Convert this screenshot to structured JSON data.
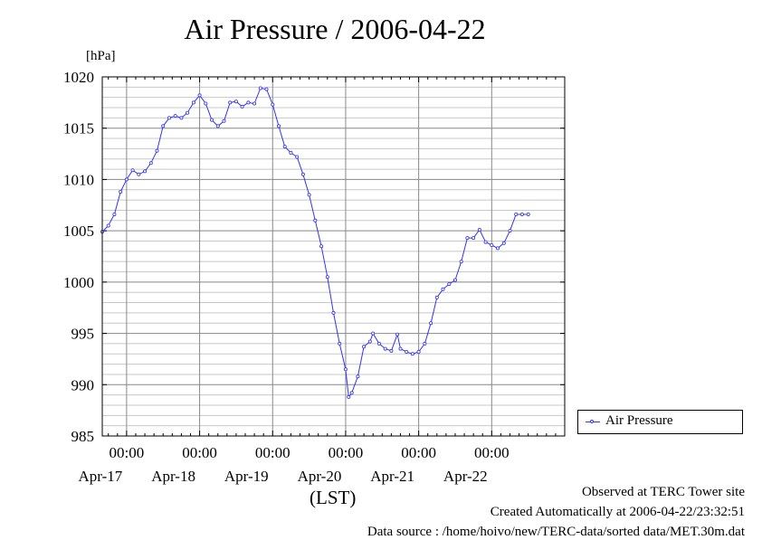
{
  "chart_data": {
    "type": "line",
    "title": "Air Pressure / 2006-04-22",
    "ylabel": "[hPa]",
    "xlabel": "(LST)",
    "ylim": [
      985,
      1020
    ],
    "yticks": [
      985,
      990,
      995,
      1000,
      1005,
      1010,
      1015,
      1020
    ],
    "xlim": [
      "2006-04-16 16:00",
      "2006-04-22 24:00"
    ],
    "xticks": [
      {
        "time": "2006-04-17 00:00",
        "clock": "00:00",
        "day": "Apr-17"
      },
      {
        "time": "2006-04-18 00:00",
        "clock": "00:00",
        "day": "Apr-18"
      },
      {
        "time": "2006-04-19 00:00",
        "clock": "00:00",
        "day": "Apr-19"
      },
      {
        "time": "2006-04-20 00:00",
        "clock": "00:00",
        "day": "Apr-20"
      },
      {
        "time": "2006-04-21 00:00",
        "clock": "00:00",
        "day": "Apr-21"
      },
      {
        "time": "2006-04-22 00:00",
        "clock": "00:00",
        "day": "Apr-22"
      }
    ],
    "grid": true,
    "legend_position": "right",
    "color": "#3333ee",
    "series": [
      {
        "name": "Air Pressure",
        "points": [
          [
            "2006-04-16 16:00",
            1004.9
          ],
          [
            "2006-04-16 18:00",
            1005.5
          ],
          [
            "2006-04-16 20:00",
            1006.6
          ],
          [
            "2006-04-16 22:00",
            1008.8
          ],
          [
            "2006-04-17 00:00",
            1010.0
          ],
          [
            "2006-04-17 02:00",
            1010.9
          ],
          [
            "2006-04-17 04:00",
            1010.5
          ],
          [
            "2006-04-17 06:00",
            1010.8
          ],
          [
            "2006-04-17 08:00",
            1011.6
          ],
          [
            "2006-04-17 10:00",
            1012.8
          ],
          [
            "2006-04-17 12:00",
            1015.2
          ],
          [
            "2006-04-17 14:00",
            1016.0
          ],
          [
            "2006-04-17 16:00",
            1016.2
          ],
          [
            "2006-04-17 18:00",
            1016.0
          ],
          [
            "2006-04-17 20:00",
            1016.5
          ],
          [
            "2006-04-17 22:00",
            1017.5
          ],
          [
            "2006-04-18 00:00",
            1018.2
          ],
          [
            "2006-04-18 02:00",
            1017.4
          ],
          [
            "2006-04-18 04:00",
            1015.8
          ],
          [
            "2006-04-18 06:00",
            1015.2
          ],
          [
            "2006-04-18 08:00",
            1015.7
          ],
          [
            "2006-04-18 10:00",
            1017.5
          ],
          [
            "2006-04-18 12:00",
            1017.6
          ],
          [
            "2006-04-18 14:00",
            1017.1
          ],
          [
            "2006-04-18 16:00",
            1017.5
          ],
          [
            "2006-04-18 18:00",
            1017.4
          ],
          [
            "2006-04-18 20:00",
            1018.9
          ],
          [
            "2006-04-18 22:00",
            1018.8
          ],
          [
            "2006-04-19 00:00",
            1017.3
          ],
          [
            "2006-04-19 02:00",
            1015.2
          ],
          [
            "2006-04-19 04:00",
            1013.2
          ],
          [
            "2006-04-19 06:00",
            1012.6
          ],
          [
            "2006-04-19 08:00",
            1012.2
          ],
          [
            "2006-04-19 10:00",
            1010.5
          ],
          [
            "2006-04-19 12:00",
            1008.5
          ],
          [
            "2006-04-19 14:00",
            1006.0
          ],
          [
            "2006-04-19 16:00",
            1003.5
          ],
          [
            "2006-04-19 18:00",
            1000.5
          ],
          [
            "2006-04-19 20:00",
            997.0
          ],
          [
            "2006-04-19 22:00",
            994.0
          ],
          [
            "2006-04-20 00:00",
            991.5
          ],
          [
            "2006-04-20 01:00",
            988.8
          ],
          [
            "2006-04-20 02:00",
            989.2
          ],
          [
            "2006-04-20 04:00",
            990.8
          ],
          [
            "2006-04-20 06:00",
            993.7
          ],
          [
            "2006-04-20 08:00",
            994.2
          ],
          [
            "2006-04-20 09:00",
            995.0
          ],
          [
            "2006-04-20 11:00",
            994.0
          ],
          [
            "2006-04-20 13:00",
            993.5
          ],
          [
            "2006-04-20 15:00",
            993.3
          ],
          [
            "2006-04-20 17:00",
            994.9
          ],
          [
            "2006-04-20 18:00",
            993.5
          ],
          [
            "2006-04-20 20:00",
            993.2
          ],
          [
            "2006-04-20 22:00",
            993.0
          ],
          [
            "2006-04-21 00:00",
            993.2
          ],
          [
            "2006-04-21 02:00",
            994.0
          ],
          [
            "2006-04-21 04:00",
            996.0
          ],
          [
            "2006-04-21 06:00",
            998.5
          ],
          [
            "2006-04-21 08:00",
            999.3
          ],
          [
            "2006-04-21 10:00",
            999.8
          ],
          [
            "2006-04-21 12:00",
            1000.2
          ],
          [
            "2006-04-21 14:00",
            1002.0
          ],
          [
            "2006-04-21 16:00",
            1004.3
          ],
          [
            "2006-04-21 18:00",
            1004.3
          ],
          [
            "2006-04-21 20:00",
            1005.1
          ],
          [
            "2006-04-21 22:00",
            1003.9
          ],
          [
            "2006-04-22 00:00",
            1003.6
          ],
          [
            "2006-04-22 02:00",
            1003.3
          ],
          [
            "2006-04-22 04:00",
            1003.8
          ],
          [
            "2006-04-22 06:00",
            1005.0
          ],
          [
            "2006-04-22 08:00",
            1006.6
          ],
          [
            "2006-04-22 10:00",
            1006.6
          ],
          [
            "2006-04-22 12:00",
            1006.6
          ]
        ]
      }
    ]
  },
  "footer": {
    "site": "Observed at TERC Tower site",
    "created": "Created Automatically at 2006-04-22/23:32:51",
    "source": "Data source : /home/hoivo/new/TERC-data/sorted  data/MET.30m.dat"
  }
}
